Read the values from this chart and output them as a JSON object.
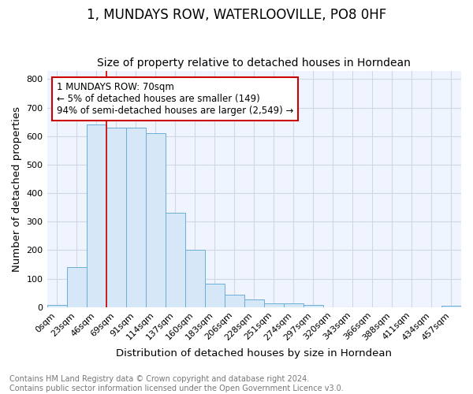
{
  "title": "1, MUNDAYS ROW, WATERLOOVILLE, PO8 0HF",
  "subtitle": "Size of property relative to detached houses in Horndean",
  "xlabel": "Distribution of detached houses by size in Horndean",
  "ylabel": "Number of detached properties",
  "bar_labels": [
    "0sqm",
    "23sqm",
    "46sqm",
    "69sqm",
    "91sqm",
    "114sqm",
    "137sqm",
    "160sqm",
    "183sqm",
    "206sqm",
    "228sqm",
    "251sqm",
    "274sqm",
    "297sqm",
    "320sqm",
    "343sqm",
    "366sqm",
    "388sqm",
    "411sqm",
    "434sqm",
    "457sqm"
  ],
  "bar_values": [
    7,
    140,
    640,
    630,
    630,
    610,
    330,
    200,
    83,
    45,
    28,
    12,
    12,
    9,
    0,
    0,
    0,
    0,
    0,
    0,
    6
  ],
  "bar_color": "#d6e8f7",
  "bar_edge_color": "#6aaed6",
  "red_line_x": 3,
  "annotation_text": "1 MUNDAYS ROW: 70sqm\n← 5% of detached houses are smaller (149)\n94% of semi-detached houses are larger (2,549) →",
  "annotation_box_color": "white",
  "annotation_box_edge_color": "#cc0000",
  "red_line_color": "#cc0000",
  "ylim": [
    0,
    830
  ],
  "yticks": [
    0,
    100,
    200,
    300,
    400,
    500,
    600,
    700,
    800
  ],
  "footnote": "Contains HM Land Registry data © Crown copyright and database right 2024.\nContains public sector information licensed under the Open Government Licence v3.0.",
  "bg_color": "#f0f4ff",
  "grid_color": "#d0d8e8",
  "title_fontsize": 12,
  "subtitle_fontsize": 10,
  "axis_label_fontsize": 9.5,
  "tick_fontsize": 8,
  "footnote_fontsize": 7,
  "ann_fontsize": 8.5
}
